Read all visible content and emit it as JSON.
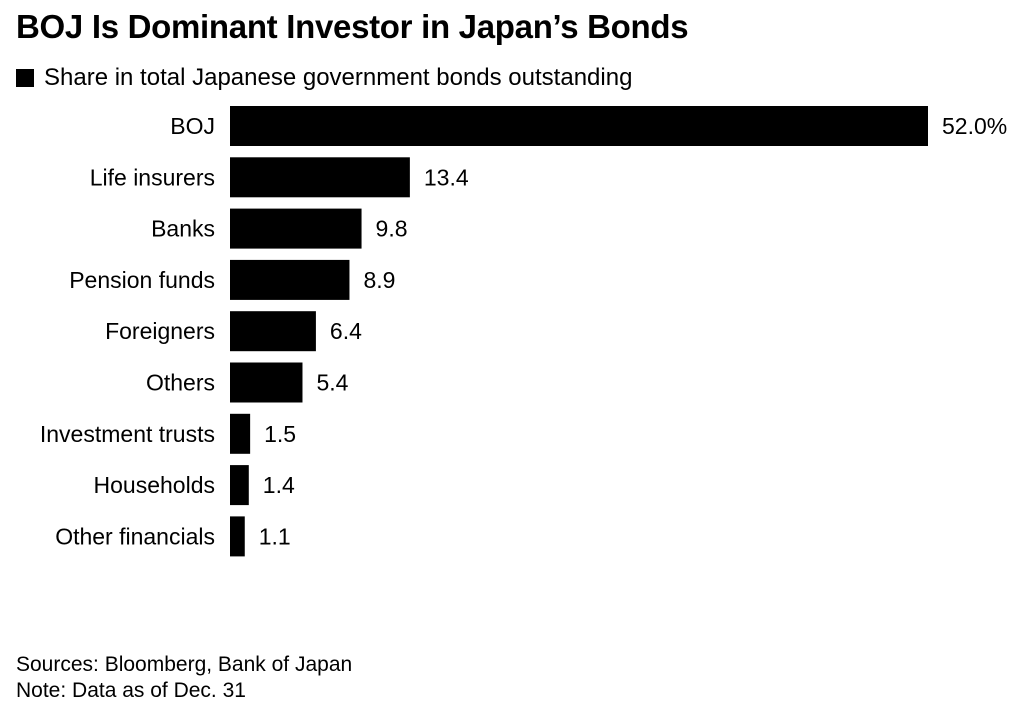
{
  "title": "BOJ Is Dominant Investor in Japan’s Bonds",
  "footer": {
    "sources": "Sources: Bloomberg, Bank of Japan",
    "note": "Note: Data as of Dec. 31"
  },
  "colors": {
    "bar": "#000000",
    "text": "#000000",
    "background": "#ffffff"
  },
  "chart_data": {
    "type": "bar",
    "orientation": "horizontal",
    "categories": [
      "BOJ",
      "Life insurers",
      "Banks",
      "Pension funds",
      "Foreigners",
      "Others",
      "Investment trusts",
      "Households",
      "Other financials"
    ],
    "series": [
      {
        "name": "Share in total Japanese government bonds outstanding",
        "values": [
          52.0,
          13.4,
          9.8,
          8.9,
          6.4,
          5.4,
          1.5,
          1.4,
          1.1
        ]
      }
    ],
    "value_labels": [
      "52.0%",
      "13.4",
      "9.8",
      "8.9",
      "6.4",
      "5.4",
      "1.5",
      "1.4",
      "1.1"
    ],
    "xlim": [
      0,
      52.0
    ],
    "grid": false,
    "legend_position": "top-left"
  }
}
